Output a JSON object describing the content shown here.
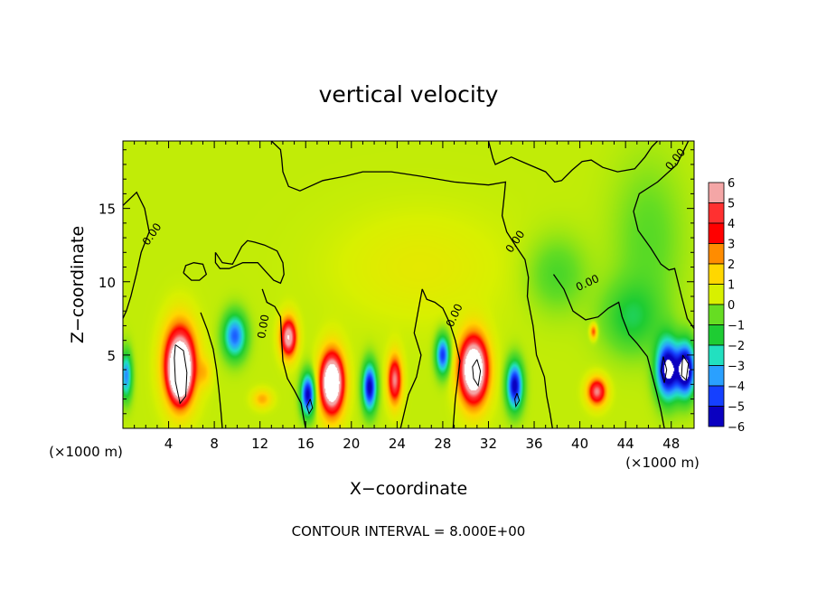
{
  "chart_data": {
    "type": "heatmap",
    "title": "vertical velocity",
    "xlabel": "X−coordinate",
    "ylabel": "Z−coordinate",
    "x_unit_left": "(×1000 m)",
    "x_unit_right": "(×1000 m)",
    "footer": "CONTOUR INTERVAL = 8.000E+00",
    "xlim": [
      0,
      50
    ],
    "ylim": [
      0,
      19.6
    ],
    "x_ticks": [
      4,
      8,
      12,
      16,
      20,
      24,
      28,
      32,
      36,
      40,
      44,
      48
    ],
    "x_tick_labels": [
      "4",
      "8",
      "12",
      "16",
      "20",
      "24",
      "28",
      "32",
      "36",
      "40",
      "44",
      "48"
    ],
    "y_ticks": [
      5,
      10,
      15
    ],
    "y_tick_labels": [
      "5",
      "10",
      "15"
    ],
    "colorbar": {
      "levels": [
        6,
        5,
        4,
        3,
        2,
        1,
        0,
        -1,
        -2,
        -3,
        -4,
        -5,
        -6
      ],
      "labels": [
        "6",
        "5",
        "4",
        "3",
        "2",
        "1",
        "0",
        "−1",
        "−2",
        "−3",
        "−4",
        "−5",
        "−6"
      ],
      "colors": [
        "#f4a6a6",
        "#ff3030",
        "#ff0000",
        "#ff8c00",
        "#ffd700",
        "#d8f000",
        "#66dd22",
        "#1ecc33",
        "#22e0c0",
        "#2aa0ff",
        "#1540ff",
        "#0a00c0",
        "#5a00a0"
      ],
      "band_values": [
        5.5,
        4.5,
        3.5,
        2.5,
        1.5,
        0.5,
        -0.5,
        -1.5,
        -2.5,
        -3.5,
        -4.5,
        -5.5
      ]
    },
    "background_value": 0.3,
    "cells": [
      {
        "x": 5,
        "z": 4.4,
        "sx": 1.3,
        "sz": 2.5,
        "w": 8
      },
      {
        "x": 5,
        "z": 3.5,
        "sx": 0.8,
        "sz": 1.6,
        "w": 5
      },
      {
        "x": 18.3,
        "z": 3.1,
        "sx": 1.0,
        "sz": 2.0,
        "w": 9
      },
      {
        "x": 30.7,
        "z": 4.0,
        "sx": 1.2,
        "sz": 2.2,
        "w": 9
      },
      {
        "x": 14.5,
        "z": 6.2,
        "sx": 0.7,
        "sz": 1.3,
        "w": 6
      },
      {
        "x": 23.8,
        "z": 3.3,
        "sx": 0.6,
        "sz": 1.6,
        "w": 5
      },
      {
        "x": 41.5,
        "z": 2.5,
        "sx": 0.8,
        "sz": 0.9,
        "w": 5
      },
      {
        "x": 41.2,
        "z": 6.6,
        "sx": 0.3,
        "sz": 0.5,
        "w": 3
      },
      {
        "x": 9.8,
        "z": 6.3,
        "sx": 1.0,
        "sz": 1.5,
        "w": -4.5
      },
      {
        "x": 16.2,
        "z": 2.3,
        "sx": 0.6,
        "sz": 1.4,
        "w": -6
      },
      {
        "x": 21.6,
        "z": 2.8,
        "sx": 0.6,
        "sz": 1.6,
        "w": -6
      },
      {
        "x": 28,
        "z": 5.0,
        "sx": 0.6,
        "sz": 1.3,
        "w": -5
      },
      {
        "x": 34.3,
        "z": 2.9,
        "sx": 0.7,
        "sz": 1.6,
        "w": -6
      },
      {
        "x": 47.7,
        "z": 4.0,
        "sx": 1.0,
        "sz": 2.0,
        "w": -7
      },
      {
        "x": 49.3,
        "z": 4.0,
        "sx": 0.8,
        "sz": 1.8,
        "w": -7
      },
      {
        "x": 0.3,
        "z": 3.6,
        "sx": 0.5,
        "sz": 1.6,
        "w": -4
      },
      {
        "x": 44.5,
        "z": 7.5,
        "sx": 2.6,
        "sz": 2.4,
        "w": -1.8
      },
      {
        "x": 38,
        "z": 10.5,
        "sx": 2.5,
        "sz": 2.5,
        "w": -1.2
      },
      {
        "x": 46,
        "z": 13,
        "sx": 3.0,
        "sz": 5.0,
        "w": -1.0
      },
      {
        "x": 26,
        "z": 11,
        "sx": 7.0,
        "sz": 3.5,
        "w": 0.5
      },
      {
        "x": 7.2,
        "z": 3.8,
        "sx": 0.6,
        "sz": 1.0,
        "w": 1.2
      },
      {
        "x": 12.2,
        "z": 2.0,
        "sx": 0.8,
        "sz": 0.6,
        "w": 1.8
      }
    ],
    "contour_labels": [
      {
        "x": 2.8,
        "z": 13.1,
        "rotate": -55,
        "text": "0.00"
      },
      {
        "x": 12.6,
        "z": 6.9,
        "rotate": -80,
        "text": "0.00"
      },
      {
        "x": 29.3,
        "z": 7.6,
        "rotate": -65,
        "text": "0.00"
      },
      {
        "x": 34.6,
        "z": 12.6,
        "rotate": -55,
        "text": "0.00"
      },
      {
        "x": 40.8,
        "z": 9.7,
        "rotate": -25,
        "text": "0.00"
      },
      {
        "x": 48.6,
        "z": 18.2,
        "rotate": -50,
        "text": "0.00"
      }
    ],
    "zero_contours": [
      [
        [
          0.0,
          15.2
        ],
        [
          1.2,
          16.1
        ],
        [
          1.9,
          15.0
        ],
        [
          2.3,
          13.4
        ],
        [
          1.6,
          12.0
        ],
        [
          1.2,
          10.6
        ],
        [
          0.7,
          9.0
        ],
        [
          0.3,
          8.0
        ],
        [
          0.0,
          7.5
        ]
      ],
      [
        [
          13.0,
          19.6
        ],
        [
          13.8,
          19.0
        ],
        [
          13.9,
          18.4
        ],
        [
          14.0,
          17.5
        ],
        [
          14.5,
          16.5
        ],
        [
          15.5,
          16.2
        ],
        [
          17.5,
          16.9
        ],
        [
          19.5,
          17.2
        ],
        [
          21.0,
          17.5
        ],
        [
          23.5,
          17.5
        ],
        [
          26.0,
          17.2
        ],
        [
          29.0,
          16.8
        ],
        [
          32.0,
          16.6
        ],
        [
          33.5,
          16.8
        ],
        [
          33.4,
          16.0
        ],
        [
          33.2,
          14.5
        ],
        [
          33.6,
          13.4
        ],
        [
          34.5,
          12.3
        ],
        [
          35.2,
          11.5
        ],
        [
          35.5,
          10.3
        ],
        [
          35.4,
          9.0
        ],
        [
          35.9,
          7.0
        ],
        [
          36.2,
          5.0
        ],
        [
          36.9,
          3.5
        ],
        [
          37.1,
          2.2
        ],
        [
          37.4,
          1.0
        ],
        [
          37.6,
          0.0
        ]
      ],
      [
        [
          32.0,
          19.6
        ],
        [
          32.4,
          18.4
        ],
        [
          32.6,
          18.0
        ],
        [
          34.0,
          18.5
        ],
        [
          35.5,
          18.0
        ],
        [
          37.0,
          17.5
        ],
        [
          37.8,
          16.8
        ],
        [
          38.4,
          16.9
        ],
        [
          39.3,
          17.6
        ],
        [
          40.2,
          18.2
        ],
        [
          41.0,
          18.3
        ],
        [
          42.0,
          17.8
        ],
        [
          43.3,
          17.5
        ],
        [
          44.8,
          17.7
        ],
        [
          45.7,
          18.5
        ],
        [
          46.3,
          19.2
        ],
        [
          46.8,
          19.6
        ]
      ],
      [
        [
          49.5,
          19.6
        ],
        [
          48.5,
          18.0
        ],
        [
          46.8,
          16.8
        ],
        [
          45.2,
          16.0
        ],
        [
          44.7,
          14.8
        ],
        [
          45.1,
          13.5
        ],
        [
          46.2,
          12.3
        ],
        [
          47.1,
          11.2
        ],
        [
          47.8,
          10.8
        ],
        [
          48.3,
          10.9
        ],
        [
          48.9,
          9.0
        ],
        [
          49.4,
          7.5
        ],
        [
          50.0,
          6.8
        ]
      ],
      [
        [
          37.7,
          10.5
        ],
        [
          38.6,
          9.5
        ],
        [
          39.4,
          8.0
        ],
        [
          40.5,
          7.4
        ],
        [
          41.6,
          7.6
        ],
        [
          42.5,
          8.2
        ],
        [
          43.4,
          8.6
        ],
        [
          43.7,
          7.6
        ],
        [
          44.3,
          6.4
        ],
        [
          45.0,
          5.8
        ],
        [
          45.9,
          4.9
        ],
        [
          46.3,
          3.7
        ],
        [
          46.7,
          2.5
        ],
        [
          47.1,
          1.2
        ],
        [
          47.4,
          0.0
        ]
      ],
      [
        [
          8.1,
          12.0
        ],
        [
          8.7,
          11.3
        ],
        [
          9.6,
          11.2
        ],
        [
          10.4,
          12.4
        ],
        [
          10.9,
          12.8
        ],
        [
          11.5,
          12.7
        ],
        [
          12.4,
          12.5
        ],
        [
          13.5,
          12.1
        ],
        [
          14.0,
          11.3
        ],
        [
          14.1,
          10.5
        ],
        [
          13.8,
          9.9
        ],
        [
          13.2,
          10.1
        ],
        [
          12.5,
          10.7
        ],
        [
          11.8,
          11.3
        ],
        [
          10.5,
          11.3
        ],
        [
          9.3,
          10.9
        ],
        [
          8.5,
          10.9
        ],
        [
          8.1,
          11.3
        ],
        [
          8.1,
          12.0
        ]
      ],
      [
        [
          5.3,
          10.6
        ],
        [
          6.0,
          10.1
        ],
        [
          6.7,
          10.1
        ],
        [
          7.3,
          10.5
        ],
        [
          7.0,
          11.2
        ],
        [
          6.2,
          11.3
        ],
        [
          5.5,
          11.1
        ],
        [
          5.3,
          10.6
        ]
      ],
      [
        [
          12.2,
          9.5
        ],
        [
          12.6,
          8.6
        ],
        [
          13.3,
          8.3
        ],
        [
          13.8,
          7.6
        ],
        [
          13.9,
          6.0
        ],
        [
          14.0,
          4.6
        ],
        [
          14.4,
          3.4
        ],
        [
          15.0,
          2.6
        ],
        [
          15.6,
          1.7
        ],
        [
          15.8,
          0.8
        ],
        [
          16.0,
          0.0
        ]
      ],
      [
        [
          26.2,
          9.5
        ],
        [
          26.6,
          8.8
        ],
        [
          27.3,
          8.6
        ],
        [
          28.0,
          8.2
        ],
        [
          28.6,
          7.2
        ],
        [
          29.1,
          6.0
        ],
        [
          29.5,
          4.6
        ],
        [
          29.3,
          3.3
        ],
        [
          29.1,
          2.0
        ],
        [
          28.9,
          0.0
        ]
      ],
      [
        [
          24.3,
          0.0
        ],
        [
          25.0,
          2.3
        ],
        [
          25.7,
          3.5
        ],
        [
          26.1,
          5.0
        ],
        [
          25.5,
          6.5
        ],
        [
          25.8,
          7.8
        ],
        [
          26.2,
          9.5
        ]
      ],
      [
        [
          6.8,
          7.9
        ],
        [
          7.4,
          6.7
        ],
        [
          7.9,
          5.4
        ],
        [
          8.2,
          4.0
        ],
        [
          8.4,
          2.6
        ],
        [
          8.6,
          1.0
        ],
        [
          8.7,
          0.0
        ]
      ]
    ],
    "inner_contours": [
      [
        [
          4.6,
          5.7
        ],
        [
          5.3,
          5.3
        ],
        [
          5.6,
          3.8
        ],
        [
          5.5,
          2.2
        ],
        [
          5.0,
          1.7
        ],
        [
          4.6,
          3.2
        ],
        [
          4.5,
          4.8
        ],
        [
          4.6,
          5.7
        ]
      ],
      [
        [
          31.0,
          4.7
        ],
        [
          31.3,
          3.9
        ],
        [
          31.1,
          2.9
        ],
        [
          30.7,
          3.4
        ],
        [
          30.6,
          4.2
        ],
        [
          31.0,
          4.7
        ]
      ],
      [
        [
          47.3,
          4.9
        ],
        [
          47.6,
          4.0
        ],
        [
          47.4,
          3.1
        ],
        [
          47.1,
          3.9
        ],
        [
          47.3,
          4.9
        ]
      ],
      [
        [
          49.0,
          5.0
        ],
        [
          49.5,
          4.4
        ],
        [
          49.3,
          3.3
        ],
        [
          48.9,
          3.6
        ],
        [
          49.0,
          5.0
        ]
      ],
      [
        [
          16.4,
          2.0
        ],
        [
          16.6,
          1.4
        ],
        [
          16.3,
          1.0
        ],
        [
          16.1,
          1.5
        ],
        [
          16.4,
          2.0
        ]
      ],
      [
        [
          34.5,
          2.4
        ],
        [
          34.7,
          1.9
        ],
        [
          34.4,
          1.5
        ],
        [
          34.3,
          2.0
        ],
        [
          34.5,
          2.4
        ]
      ]
    ]
  }
}
